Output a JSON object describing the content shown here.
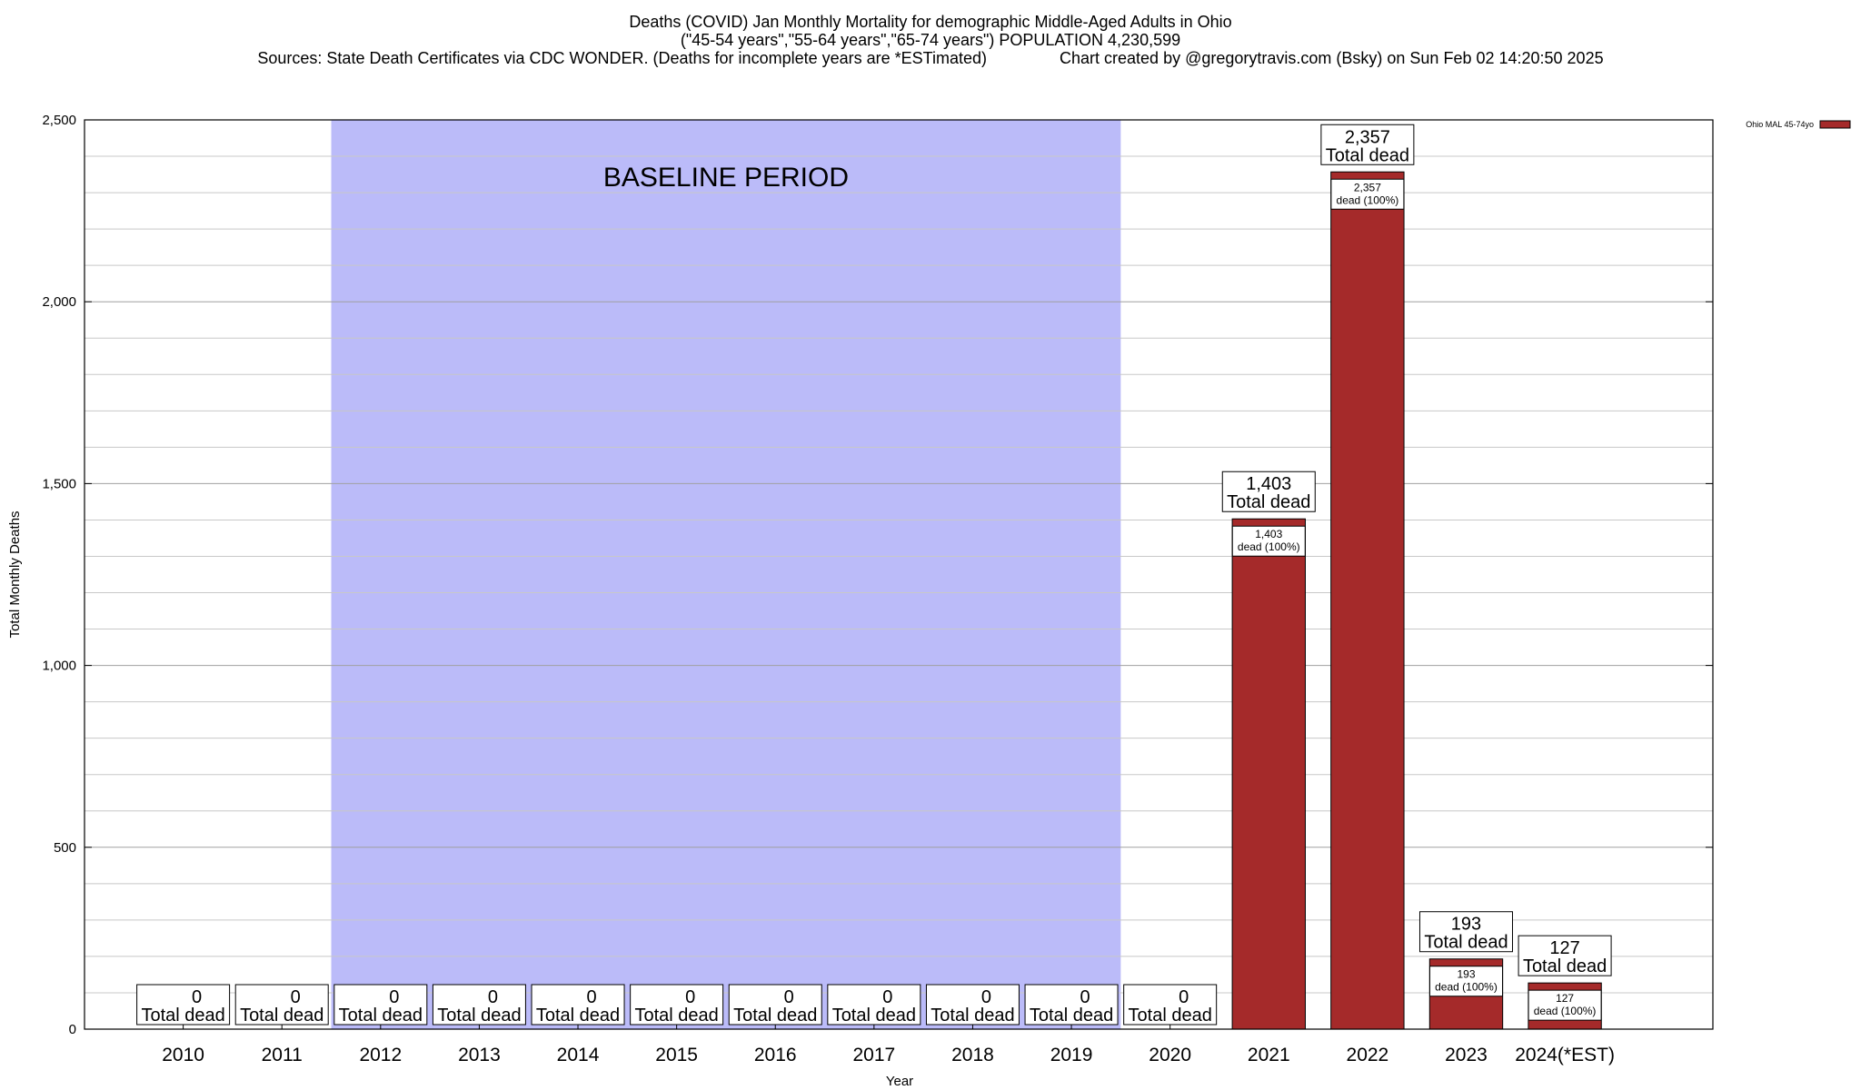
{
  "titles": {
    "line1": "Deaths (COVID) Jan Monthly Mortality for demographic Middle-Aged Adults in Ohio",
    "line2": "(\"45-54 years\",\"55-64 years\",\"65-74 years\") POPULATION 4,230,599",
    "line3": "Sources: State Death Certificates via CDC WONDER. (Deaths for incomplete years are *ESTimated)                Chart created by @gregorytravis.com (Bsky) on Sun Feb 02 14:20:50 2025"
  },
  "chart_data": {
    "type": "bar",
    "xlabel": "Year",
    "ylabel": "Total Monthly Deaths",
    "ylim": [
      0,
      2500
    ],
    "yticks": [
      {
        "value": 0,
        "label": "0"
      },
      {
        "value": 500,
        "label": "500"
      },
      {
        "value": 1000,
        "label": "1,000"
      },
      {
        "value": 1500,
        "label": "1,500"
      },
      {
        "value": 2000,
        "label": "2,000"
      },
      {
        "value": 2500,
        "label": "2,500"
      }
    ],
    "minor_grid_step": 100,
    "grid": true,
    "legend": {
      "position": "top-right",
      "label": "Ohio MAL 45-74yo",
      "color": "#a52a2a"
    },
    "categories": [
      "2010",
      "2011",
      "2012",
      "2013",
      "2014",
      "2015",
      "2016",
      "2017",
      "2018",
      "2019",
      "2020",
      "2021",
      "2022",
      "2023",
      "2024(*EST)"
    ],
    "values": [
      0,
      0,
      0,
      0,
      0,
      0,
      0,
      0,
      0,
      0,
      0,
      1403,
      2357,
      193,
      127
    ],
    "total_labels": [
      "0",
      "0",
      "0",
      "0",
      "0",
      "0",
      "0",
      "0",
      "0",
      "0",
      "0",
      "1,403",
      "2,357",
      "193",
      "127"
    ],
    "total_suffix": "Total dead",
    "inner_suffix": "dead (100%)",
    "bar_color": "#a52a2a",
    "baseline_period": {
      "label": "BASELINE PERIOD",
      "from": "2012",
      "to": "2019",
      "color": "#bbbbf9"
    }
  }
}
